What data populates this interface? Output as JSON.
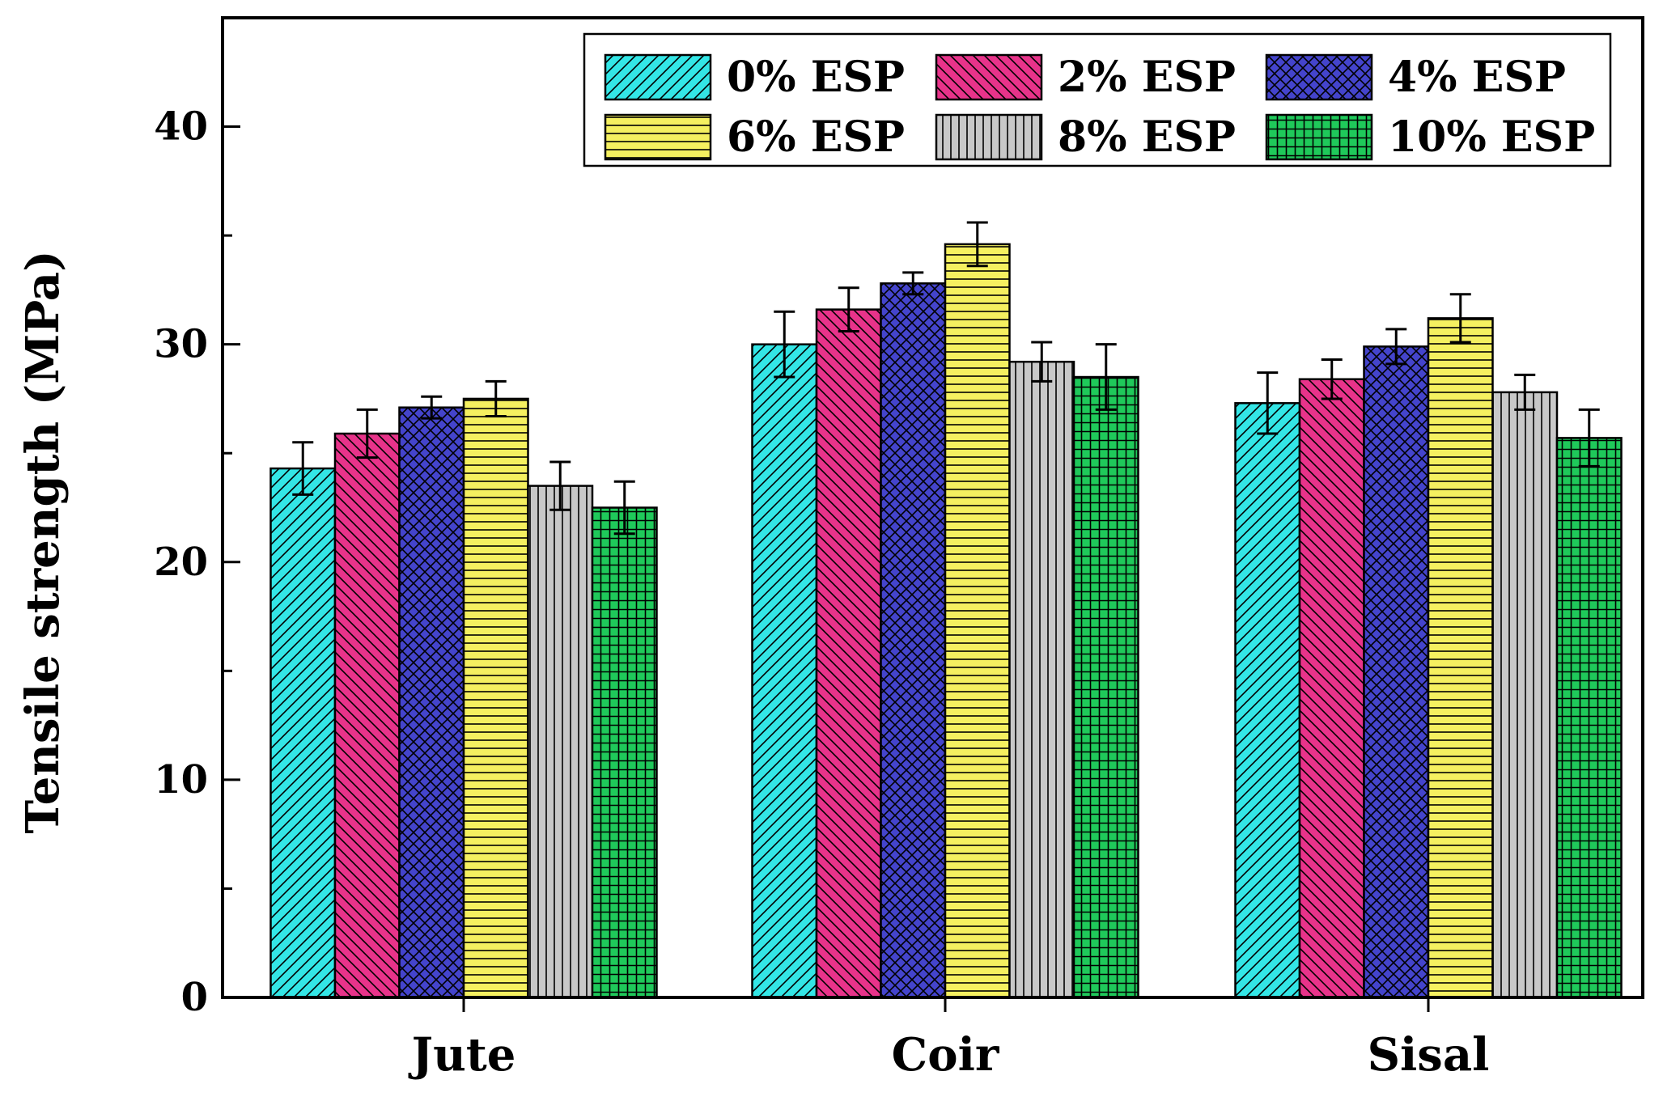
{
  "chart_data": {
    "type": "bar",
    "title": "",
    "xlabel": "",
    "ylabel": "Tensile strength (MPa)",
    "ylim": [
      0,
      45
    ],
    "yticks": [
      0,
      10,
      20,
      30,
      40
    ],
    "categories": [
      "Jute",
      "Coir",
      "Sisal"
    ],
    "legend_position": "top-right",
    "series": [
      {
        "name": "0% ESP",
        "color": "#33e6e6",
        "pattern": "diagonal-up",
        "values": [
          24.3,
          30.0,
          27.3
        ],
        "errors": [
          1.2,
          1.5,
          1.4
        ]
      },
      {
        "name": "2% ESP",
        "color": "#e8338a",
        "pattern": "diagonal-down",
        "values": [
          25.9,
          31.6,
          28.4
        ],
        "errors": [
          1.1,
          1.0,
          0.9
        ]
      },
      {
        "name": "4% ESP",
        "color": "#4444cc",
        "pattern": "crosshatch",
        "values": [
          27.1,
          32.8,
          29.9
        ],
        "errors": [
          0.5,
          0.5,
          0.8
        ]
      },
      {
        "name": "6% ESP",
        "color": "#f5f060",
        "pattern": "horizontal",
        "values": [
          27.5,
          34.6,
          31.2
        ],
        "errors": [
          0.8,
          1.0,
          1.1
        ]
      },
      {
        "name": "8% ESP",
        "color": "#c8c8c8",
        "pattern": "vertical",
        "values": [
          23.5,
          29.2,
          27.8
        ],
        "errors": [
          1.1,
          0.9,
          0.8
        ]
      },
      {
        "name": "10% ESP",
        "color": "#1fc95a",
        "pattern": "grid",
        "values": [
          22.5,
          28.5,
          25.7
        ],
        "errors": [
          1.2,
          1.5,
          1.3
        ]
      }
    ]
  }
}
